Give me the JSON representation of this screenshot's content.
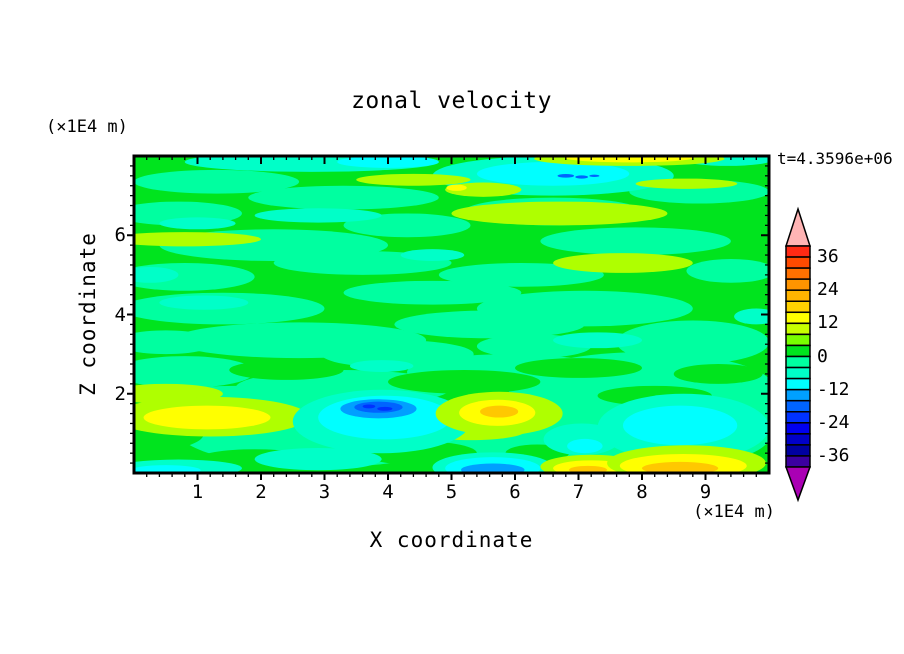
{
  "title": "zonal velocity",
  "time_annotation": "t=4.3596e+06",
  "axes": {
    "x_title": "X coordinate",
    "x_unit": "(×1E4 m)",
    "y_title": "Z coordinate",
    "y_unit": "(×1E4 m)",
    "x_range": [
      0,
      10
    ],
    "z_range": [
      0,
      8
    ],
    "x_major_ticks": [
      1,
      2,
      3,
      4,
      5,
      6,
      7,
      8,
      9
    ],
    "x_major_labels": [
      "1",
      "2",
      "3",
      "4",
      "5",
      "6",
      "7",
      "8",
      "9"
    ],
    "x_minor_step": 0.2,
    "z_major_ticks": [
      2,
      4,
      6
    ],
    "z_major_labels": [
      "2",
      "4",
      "6"
    ],
    "z_minor_step": 0.25,
    "grid": false
  },
  "colorbar": {
    "level_min": -40,
    "level_max": 40,
    "level_step": 4,
    "tick_labels": [
      "36",
      "24",
      "12",
      "0",
      "-12",
      "-24",
      "-36"
    ],
    "tick_values": [
      36,
      24,
      12,
      0,
      -12,
      -24,
      -36
    ],
    "colors_top_to_bottom": [
      "#FF2A14",
      "#FF4A00",
      "#FF7000",
      "#FF9400",
      "#FFB400",
      "#FFD200",
      "#FFFF00",
      "#C8FF00",
      "#78FF00",
      "#00E41E",
      "#00FFA0",
      "#00FFC8",
      "#00FFFF",
      "#00A0FF",
      "#0064FF",
      "#0032FF",
      "#0000F0",
      "#0000C8",
      "#0000A0",
      "#3C00A0"
    ],
    "over_arrow_color": "#FFB4B4",
    "under_arrow_color": "#AA00B4"
  },
  "chart_data": {
    "type": "heatmap",
    "subtype": "filled-contour",
    "field_name": "zonal velocity",
    "xlabel": "X coordinate (×1E4 m)",
    "ylabel": "Z coordinate (×1E4 m)",
    "xlim": [
      0,
      10
    ],
    "ylim": [
      0,
      8
    ],
    "value_levels": [
      -40,
      -36,
      -32,
      -28,
      -24,
      -20,
      -16,
      -12,
      -8,
      -4,
      0,
      4,
      8,
      12,
      16,
      20,
      24,
      28,
      32,
      36,
      40
    ],
    "background_level": "0 to 4",
    "background_key": "g",
    "palette": {
      "g": "#00E41E",
      "m": "#00FFA0",
      "t": "#00FFC8",
      "c": "#00FFFF",
      "s": "#00A0FF",
      "b": "#0064FF",
      "db": "#0032FF",
      "ch": "#AFFF00",
      "y": "#FFFF00",
      "gd": "#FFC800"
    },
    "palette_levels": {
      "g": "0..4",
      "m": "-4..0",
      "t": "-8..-4",
      "c": "-12..-8",
      "s": "-16..-12",
      "b": "-20..-16",
      "db": "-24..-20",
      "ch": "8..12",
      "y": "12..16",
      "gd": "16..20"
    },
    "streaks": [
      [
        1.3,
        7.35,
        1.3,
        0.3,
        "m"
      ],
      [
        3.3,
        6.95,
        1.5,
        0.3,
        "m"
      ],
      [
        0.7,
        6.55,
        1.0,
        0.3,
        "m"
      ],
      [
        2.2,
        5.75,
        1.8,
        0.4,
        "m"
      ],
      [
        0.8,
        4.95,
        1.1,
        0.35,
        "m"
      ],
      [
        3.6,
        5.3,
        1.4,
        0.3,
        "m"
      ],
      [
        1.4,
        4.15,
        1.6,
        0.4,
        "m"
      ],
      [
        4.7,
        4.55,
        1.4,
        0.3,
        "m"
      ],
      [
        2.6,
        3.35,
        2.0,
        0.45,
        "m"
      ],
      [
        5.6,
        3.75,
        1.5,
        0.35,
        "m"
      ],
      [
        0.8,
        2.55,
        1.1,
        0.4,
        "m"
      ],
      [
        3.3,
        2.15,
        1.7,
        0.45,
        "m"
      ],
      [
        6.6,
        6.6,
        1.4,
        0.35,
        "m"
      ],
      [
        7.9,
        5.85,
        1.5,
        0.35,
        "m"
      ],
      [
        8.9,
        7.1,
        1.1,
        0.3,
        "m"
      ],
      [
        6.1,
        5.0,
        1.3,
        0.3,
        "m"
      ],
      [
        7.1,
        4.15,
        1.7,
        0.45,
        "m"
      ],
      [
        8.8,
        3.3,
        1.2,
        0.55,
        "m"
      ],
      [
        5.9,
        2.55,
        1.6,
        0.45,
        "m"
      ],
      [
        8.0,
        2.1,
        2.1,
        0.95,
        "m"
      ],
      [
        3.0,
        1.05,
        2.3,
        0.9,
        "m"
      ],
      [
        7.7,
        0.9,
        2.3,
        0.85,
        "m"
      ],
      [
        5.0,
        0.9,
        1.4,
        0.7,
        "m"
      ],
      [
        9.4,
        5.1,
        0.7,
        0.3,
        "m"
      ],
      [
        4.3,
        6.25,
        1.0,
        0.3,
        "m"
      ],
      [
        0.5,
        3.3,
        0.8,
        0.3,
        "m"
      ],
      [
        9.5,
        1.4,
        0.7,
        0.7,
        "m"
      ],
      [
        4.15,
        3.0,
        1.2,
        0.35,
        "m"
      ],
      [
        6.3,
        3.2,
        0.9,
        0.3,
        "m"
      ],
      [
        1.6,
        1.8,
        1.3,
        0.4,
        "m"
      ],
      [
        5.2,
        2.3,
        1.2,
        0.3,
        "g"
      ],
      [
        7.0,
        2.65,
        1.0,
        0.25,
        "g"
      ],
      [
        9.2,
        2.5,
        0.7,
        0.25,
        "g"
      ],
      [
        4.5,
        0.5,
        0.9,
        0.3,
        "g"
      ],
      [
        1.9,
        0.35,
        0.9,
        0.25,
        "g"
      ],
      [
        6.35,
        0.5,
        0.5,
        0.22,
        "g"
      ],
      [
        8.2,
        1.95,
        0.9,
        0.25,
        "g"
      ],
      [
        2.4,
        2.6,
        0.9,
        0.25,
        "g"
      ],
      [
        0.4,
        1.0,
        0.7,
        0.4,
        "g"
      ],
      [
        2.8,
        7.85,
        2.0,
        0.25,
        "t"
      ],
      [
        6.6,
        7.5,
        1.9,
        0.5,
        "t"
      ],
      [
        9.35,
        7.9,
        0.7,
        0.15,
        "t"
      ],
      [
        1.0,
        6.3,
        0.6,
        0.15,
        "t"
      ],
      [
        2.9,
        6.5,
        1.0,
        0.18,
        "t"
      ],
      [
        0.25,
        5.0,
        0.45,
        0.2,
        "t"
      ],
      [
        1.1,
        4.3,
        0.7,
        0.18,
        "t"
      ],
      [
        4.7,
        5.5,
        0.5,
        0.15,
        "t"
      ],
      [
        7.3,
        3.35,
        0.7,
        0.2,
        "t"
      ],
      [
        3.9,
        2.7,
        0.5,
        0.15,
        "t"
      ],
      [
        9.8,
        3.95,
        0.35,
        0.2,
        "t"
      ],
      [
        2.9,
        0.35,
        1.0,
        0.28,
        "t"
      ],
      [
        0.7,
        0.12,
        1.0,
        0.22,
        "t"
      ],
      [
        6.6,
        7.55,
        1.2,
        0.3,
        "c"
      ],
      [
        4.0,
        7.85,
        0.8,
        0.15,
        "c"
      ],
      [
        0.5,
        0.07,
        0.55,
        0.13,
        "c"
      ],
      [
        6.8,
        7.5,
        0.13,
        0.045,
        "b"
      ],
      [
        7.05,
        7.47,
        0.1,
        0.04,
        "b"
      ],
      [
        7.25,
        7.5,
        0.08,
        0.03,
        "b"
      ],
      [
        4.4,
        7.4,
        0.9,
        0.15,
        "ch"
      ],
      [
        5.5,
        7.15,
        0.6,
        0.18,
        "ch"
      ],
      [
        5.08,
        7.2,
        0.16,
        0.08,
        "y"
      ],
      [
        6.7,
        6.55,
        1.7,
        0.3,
        "ch"
      ],
      [
        8.7,
        7.3,
        0.8,
        0.13,
        "ch"
      ],
      [
        7.8,
        7.93,
        1.5,
        0.18,
        "ch"
      ],
      [
        7.8,
        7.95,
        1.0,
        0.11,
        "y"
      ],
      [
        0.8,
        5.9,
        1.2,
        0.18,
        "ch"
      ],
      [
        7.7,
        5.3,
        1.1,
        0.25,
        "ch"
      ],
      [
        0.5,
        2.0,
        0.9,
        0.25,
        "ch"
      ],
      [
        5.3,
        1.05,
        0.85,
        0.22,
        "ch"
      ],
      [
        1.2,
        1.42,
        1.55,
        0.5,
        "ch"
      ],
      [
        1.15,
        1.4,
        1.0,
        0.3,
        "y"
      ],
      [
        3.18,
        1.55,
        0.3,
        0.28,
        "g"
      ],
      [
        3.18,
        1.55,
        0.16,
        0.14,
        "m"
      ],
      [
        3.9,
        1.3,
        1.4,
        0.8,
        "t"
      ],
      [
        3.95,
        1.4,
        1.05,
        0.55,
        "c"
      ],
      [
        3.85,
        1.62,
        0.6,
        0.24,
        "s"
      ],
      [
        3.85,
        1.66,
        0.38,
        0.14,
        "b"
      ],
      [
        3.7,
        1.68,
        0.1,
        0.05,
        "db"
      ],
      [
        3.95,
        1.62,
        0.12,
        0.05,
        "db"
      ],
      [
        7.05,
        0.85,
        0.6,
        0.4,
        "t"
      ],
      [
        7.1,
        0.68,
        0.28,
        0.18,
        "c"
      ],
      [
        5.75,
        1.5,
        1.0,
        0.55,
        "ch"
      ],
      [
        5.72,
        1.52,
        0.6,
        0.33,
        "y"
      ],
      [
        5.75,
        1.55,
        0.3,
        0.15,
        "gd"
      ],
      [
        8.65,
        1.15,
        1.35,
        0.85,
        "t"
      ],
      [
        8.6,
        1.2,
        0.9,
        0.5,
        "c"
      ],
      [
        5.65,
        0.14,
        0.95,
        0.38,
        "t"
      ],
      [
        5.65,
        0.12,
        0.75,
        0.28,
        "c"
      ],
      [
        5.65,
        0.08,
        0.5,
        0.16,
        "s"
      ],
      [
        7.2,
        0.16,
        0.8,
        0.3,
        "ch"
      ],
      [
        7.2,
        0.12,
        0.6,
        0.2,
        "y"
      ],
      [
        7.15,
        0.08,
        0.3,
        0.1,
        "gd"
      ],
      [
        8.7,
        0.25,
        1.25,
        0.45,
        "ch"
      ],
      [
        8.65,
        0.18,
        1.0,
        0.3,
        "y"
      ],
      [
        8.6,
        0.12,
        0.6,
        0.16,
        "gd"
      ]
    ]
  }
}
